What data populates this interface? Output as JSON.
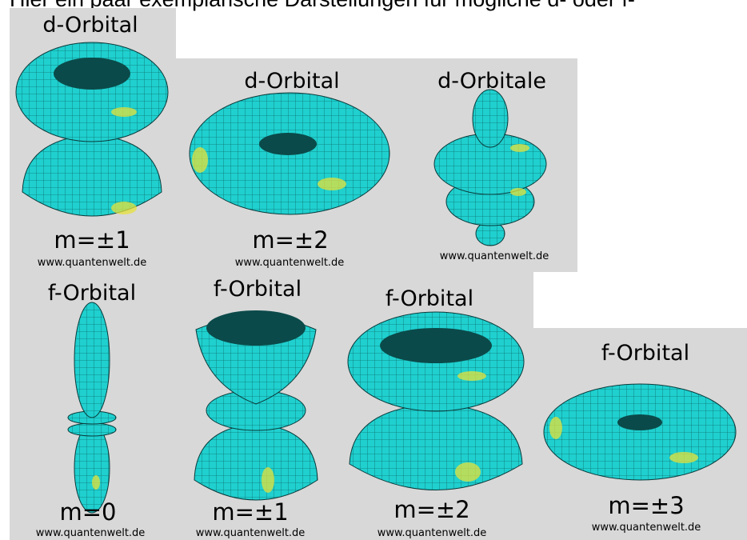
{
  "header": {
    "text": "Hier ein paar exemplarische Darstellungen für mögliche d- oder f-"
  },
  "panels": [
    {
      "title": "d-Orbital",
      "label": "m=±1",
      "credit": "www.quantenwelt.de"
    },
    {
      "title": "d-Orbital",
      "label": "m=±2",
      "credit": "www.quantenwelt.de"
    },
    {
      "title": "d-Orbitale",
      "credit": "www.quantenwelt.de"
    },
    {
      "title": "f-Orbital",
      "label": "m=0",
      "credit": "www.quantenwelt.de"
    },
    {
      "title": "f-Orbital",
      "label": "m=±1",
      "credit": "www.quantenwelt.de"
    },
    {
      "title": "f-Orbital",
      "label": "m=±2",
      "credit": "www.quantenwelt.de"
    },
    {
      "title": "f-Orbital",
      "label": "m=±3",
      "credit": "www.quantenwelt.de"
    }
  ]
}
